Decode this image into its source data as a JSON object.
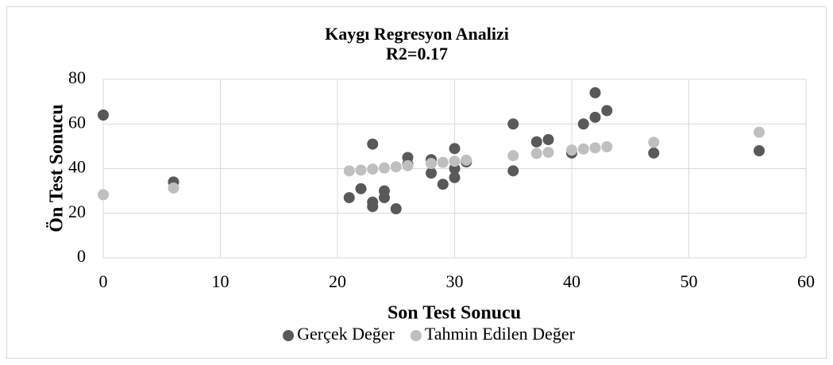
{
  "chart_data": {
    "type": "scatter",
    "title": "Kaygı Regresyon Analizi",
    "subtitle": "R2=0.17",
    "x_label": "Son Test Sonucu",
    "y_label": "Ön Test Sonucu",
    "xlim": [
      0,
      60
    ],
    "xticks": [
      0,
      10,
      20,
      30,
      40,
      50,
      60
    ],
    "ylim": [
      0,
      80
    ],
    "yticks": [
      0,
      20,
      40,
      60,
      80
    ],
    "grid": true,
    "legend": "bottom",
    "series": [
      {
        "name": "Gerçek Değer",
        "color": "#595959",
        "x": [
          0,
          6,
          21,
          22,
          23,
          23,
          23,
          24,
          24,
          25,
          26,
          26,
          28,
          28,
          29,
          30,
          30,
          30,
          31,
          35,
          35,
          37,
          38,
          40,
          41,
          42,
          42,
          43,
          47,
          56
        ],
        "values": [
          64,
          34,
          27,
          31,
          51,
          25,
          23,
          30,
          27,
          22,
          45,
          42,
          44,
          38,
          33,
          49,
          40,
          36,
          43,
          60,
          39,
          52,
          53,
          47,
          60,
          74,
          63,
          66,
          47,
          48
        ]
      },
      {
        "name": "Tahmin Edilen Değer",
        "color": "#bfbfbf",
        "x": [
          0,
          6,
          21,
          22,
          23,
          24,
          25,
          26,
          28,
          29,
          30,
          31,
          35,
          37,
          38,
          40,
          41,
          42,
          43,
          47,
          56
        ],
        "values": [
          28.3,
          31.3,
          39,
          39.3,
          39.8,
          40.3,
          40.8,
          41.3,
          42.3,
          42.8,
          43.3,
          43.8,
          45.8,
          46.8,
          47.3,
          48.3,
          48.8,
          49.3,
          49.8,
          51.8,
          56.3
        ]
      }
    ]
  }
}
